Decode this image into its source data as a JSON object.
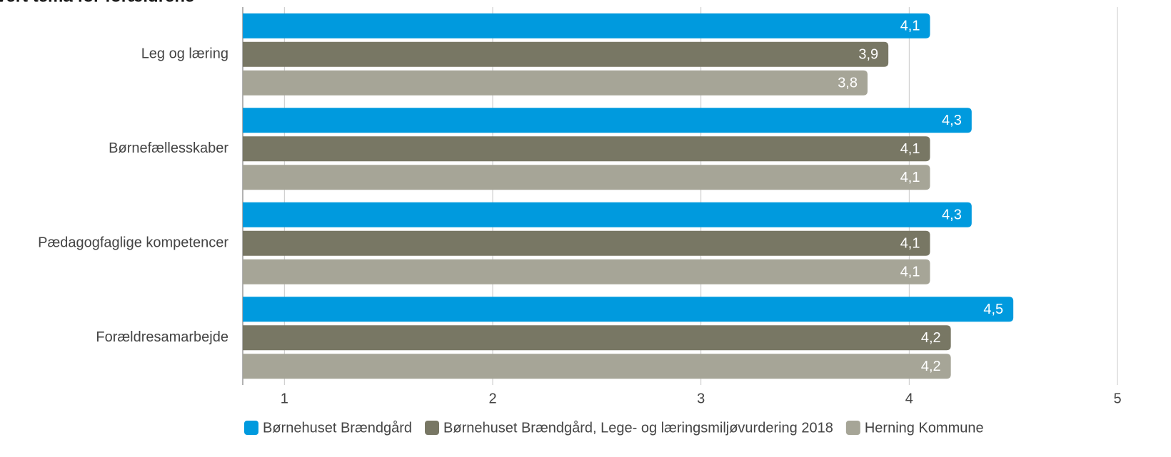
{
  "chart_data": {
    "type": "barh",
    "title": "vert tema for forældrene",
    "categories": [
      "Leg og læring",
      "Børnefællesskaber",
      "Pædagogfaglige kompetencer",
      "Forældresamarbejde"
    ],
    "series": [
      {
        "name": "Børnehuset Brændgård",
        "color": "#009ade",
        "values": [
          4.1,
          4.3,
          4.3,
          4.5
        ],
        "value_labels": [
          "4,1",
          "4,3",
          "4,3",
          "4,5"
        ]
      },
      {
        "name": "Børnehuset Brændgård, Lege- og læringsmiljøvurdering 2018",
        "color": "#787764",
        "values": [
          3.9,
          4.1,
          4.1,
          4.2
        ],
        "value_labels": [
          "3,9",
          "4,1",
          "4,1",
          "4,2"
        ]
      },
      {
        "name": "Herning Kommune",
        "color": "#a6a597",
        "values": [
          3.8,
          4.1,
          4.1,
          4.2
        ],
        "value_labels": [
          "3,8",
          "4,1",
          "4,1",
          "4,2"
        ]
      }
    ],
    "xlim": [
      0.8,
      5
    ],
    "xticks": [
      1,
      2,
      3,
      4,
      5
    ],
    "grid": true,
    "legend": "bottom"
  }
}
